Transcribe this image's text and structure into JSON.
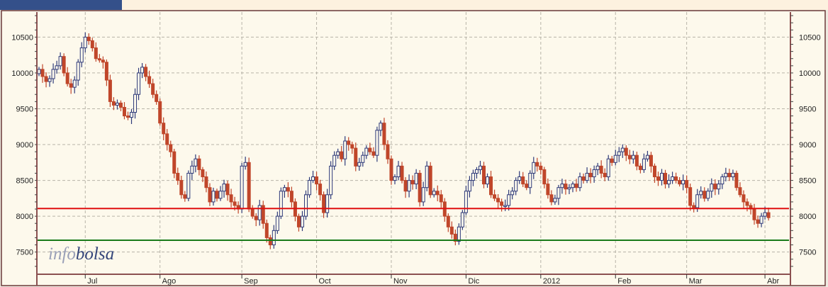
{
  "chart_data": {
    "type": "candlestick",
    "title": "",
    "ylim": [
      7200,
      10850
    ],
    "yticks": [
      7500,
      8000,
      8500,
      9000,
      9500,
      10000,
      10500
    ],
    "grid": true,
    "month_labels": [
      {
        "label": "Jul",
        "index": 13
      },
      {
        "label": "Ago",
        "index": 34
      },
      {
        "label": "Sep",
        "index": 57
      },
      {
        "label": "Oct",
        "index": 78
      },
      {
        "label": "Nov",
        "index": 99
      },
      {
        "label": "Dic",
        "index": 120
      },
      {
        "label": "2012",
        "index": 141
      },
      {
        "label": "Feb",
        "index": 162
      },
      {
        "label": "Mar",
        "index": 182
      },
      {
        "label": "Abr",
        "index": 204
      }
    ],
    "close": [
      10050,
      9950,
      9880,
      9920,
      10050,
      10100,
      10230,
      10000,
      9850,
      9800,
      9900,
      10150,
      10350,
      10500,
      10450,
      10350,
      10200,
      10180,
      10150,
      9900,
      9600,
      9550,
      9580,
      9520,
      9400,
      9380,
      9450,
      9700,
      10000,
      10080,
      9950,
      9850,
      9700,
      9600,
      9300,
      9150,
      9000,
      8900,
      8600,
      8500,
      8300,
      8250,
      8600,
      8700,
      8800,
      8650,
      8550,
      8400,
      8200,
      8350,
      8250,
      8350,
      8450,
      8300,
      8200,
      8150,
      8100,
      8700,
      8750,
      8100,
      8000,
      7950,
      8150,
      7900,
      7700,
      7600,
      7800,
      8000,
      8350,
      8400,
      8350,
      8200,
      8000,
      7850,
      8000,
      8300,
      8500,
      8550,
      8450,
      8300,
      8050,
      8300,
      8700,
      8850,
      8900,
      8800,
      9050,
      9000,
      8950,
      8700,
      8750,
      8850,
      8950,
      8900,
      8850,
      9200,
      9300,
      9000,
      8800,
      8500,
      8550,
      8700,
      8500,
      8350,
      8500,
      8450,
      8600,
      8200,
      8400,
      8700,
      8300,
      8350,
      8300,
      8200,
      8000,
      7850,
      7750,
      7650,
      7850,
      8050,
      8350,
      8500,
      8600,
      8650,
      8700,
      8450,
      8550,
      8300,
      8250,
      8200,
      8150,
      8150,
      8300,
      8350,
      8500,
      8550,
      8450,
      8400,
      8600,
      8750,
      8700,
      8650,
      8450,
      8300,
      8200,
      8250,
      8400,
      8450,
      8380,
      8400,
      8450,
      8400,
      8550,
      8500,
      8600,
      8550,
      8650,
      8700,
      8600,
      8550,
      8800,
      8750,
      8850,
      8900,
      8950,
      8850,
      8800,
      8850,
      8700,
      8650,
      8800,
      8850,
      8700,
      8550,
      8500,
      8600,
      8450,
      8500,
      8550,
      8500,
      8450,
      8500,
      8400,
      8150,
      8120,
      8300,
      8350,
      8250,
      8350,
      8450,
      8380,
      8450,
      8550,
      8600,
      8550,
      8600,
      8400,
      8300,
      8200,
      8150,
      8100,
      7950,
      7900,
      8000,
      8050,
      7980
    ],
    "lines": [
      {
        "level": 8108,
        "color": "#e01010"
      },
      {
        "level": 7665,
        "color": "#1a7a1a"
      }
    ],
    "colors": {
      "up": "#2e3a7a",
      "down": "#c0462a",
      "background": "#fdf9ec"
    }
  },
  "watermark": {
    "part1": "info",
    "part2": "bolsa"
  }
}
